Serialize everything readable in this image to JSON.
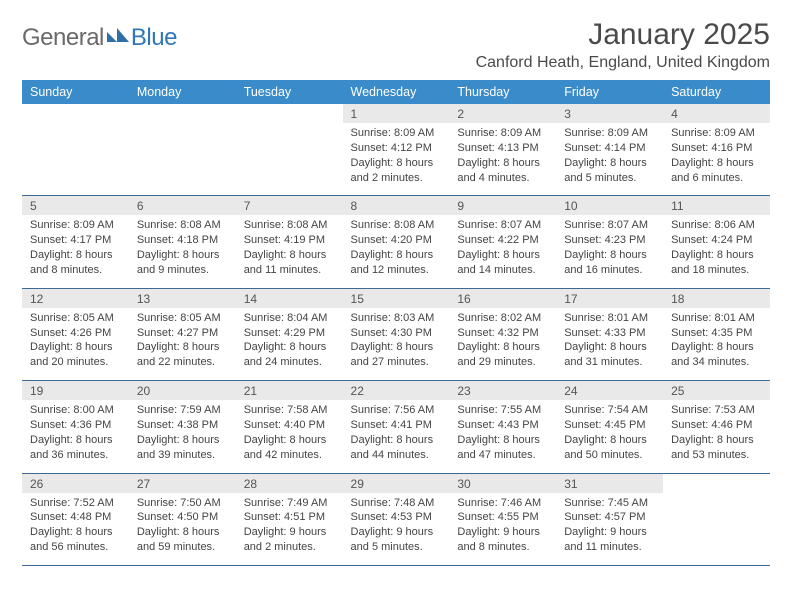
{
  "logo": {
    "word1": "General",
    "word2": "Blue"
  },
  "title": "January 2025",
  "location": "Canford Heath, England, United Kingdom",
  "colors": {
    "header_bg": "#3a8bc9",
    "header_text": "#ffffff",
    "daynum_bg": "#e9e9e9",
    "rule": "#3a6a95",
    "logo_gray": "#6a6a6a",
    "logo_blue": "#3077b7"
  },
  "day_headers": [
    "Sunday",
    "Monday",
    "Tuesday",
    "Wednesday",
    "Thursday",
    "Friday",
    "Saturday"
  ],
  "weeks": [
    [
      null,
      null,
      null,
      {
        "n": "1",
        "sr": "8:09 AM",
        "ss": "4:12 PM",
        "dl": "8 hours and 2 minutes."
      },
      {
        "n": "2",
        "sr": "8:09 AM",
        "ss": "4:13 PM",
        "dl": "8 hours and 4 minutes."
      },
      {
        "n": "3",
        "sr": "8:09 AM",
        "ss": "4:14 PM",
        "dl": "8 hours and 5 minutes."
      },
      {
        "n": "4",
        "sr": "8:09 AM",
        "ss": "4:16 PM",
        "dl": "8 hours and 6 minutes."
      }
    ],
    [
      {
        "n": "5",
        "sr": "8:09 AM",
        "ss": "4:17 PM",
        "dl": "8 hours and 8 minutes."
      },
      {
        "n": "6",
        "sr": "8:08 AM",
        "ss": "4:18 PM",
        "dl": "8 hours and 9 minutes."
      },
      {
        "n": "7",
        "sr": "8:08 AM",
        "ss": "4:19 PM",
        "dl": "8 hours and 11 minutes."
      },
      {
        "n": "8",
        "sr": "8:08 AM",
        "ss": "4:20 PM",
        "dl": "8 hours and 12 minutes."
      },
      {
        "n": "9",
        "sr": "8:07 AM",
        "ss": "4:22 PM",
        "dl": "8 hours and 14 minutes."
      },
      {
        "n": "10",
        "sr": "8:07 AM",
        "ss": "4:23 PM",
        "dl": "8 hours and 16 minutes."
      },
      {
        "n": "11",
        "sr": "8:06 AM",
        "ss": "4:24 PM",
        "dl": "8 hours and 18 minutes."
      }
    ],
    [
      {
        "n": "12",
        "sr": "8:05 AM",
        "ss": "4:26 PM",
        "dl": "8 hours and 20 minutes."
      },
      {
        "n": "13",
        "sr": "8:05 AM",
        "ss": "4:27 PM",
        "dl": "8 hours and 22 minutes."
      },
      {
        "n": "14",
        "sr": "8:04 AM",
        "ss": "4:29 PM",
        "dl": "8 hours and 24 minutes."
      },
      {
        "n": "15",
        "sr": "8:03 AM",
        "ss": "4:30 PM",
        "dl": "8 hours and 27 minutes."
      },
      {
        "n": "16",
        "sr": "8:02 AM",
        "ss": "4:32 PM",
        "dl": "8 hours and 29 minutes."
      },
      {
        "n": "17",
        "sr": "8:01 AM",
        "ss": "4:33 PM",
        "dl": "8 hours and 31 minutes."
      },
      {
        "n": "18",
        "sr": "8:01 AM",
        "ss": "4:35 PM",
        "dl": "8 hours and 34 minutes."
      }
    ],
    [
      {
        "n": "19",
        "sr": "8:00 AM",
        "ss": "4:36 PM",
        "dl": "8 hours and 36 minutes."
      },
      {
        "n": "20",
        "sr": "7:59 AM",
        "ss": "4:38 PM",
        "dl": "8 hours and 39 minutes."
      },
      {
        "n": "21",
        "sr": "7:58 AM",
        "ss": "4:40 PM",
        "dl": "8 hours and 42 minutes."
      },
      {
        "n": "22",
        "sr": "7:56 AM",
        "ss": "4:41 PM",
        "dl": "8 hours and 44 minutes."
      },
      {
        "n": "23",
        "sr": "7:55 AM",
        "ss": "4:43 PM",
        "dl": "8 hours and 47 minutes."
      },
      {
        "n": "24",
        "sr": "7:54 AM",
        "ss": "4:45 PM",
        "dl": "8 hours and 50 minutes."
      },
      {
        "n": "25",
        "sr": "7:53 AM",
        "ss": "4:46 PM",
        "dl": "8 hours and 53 minutes."
      }
    ],
    [
      {
        "n": "26",
        "sr": "7:52 AM",
        "ss": "4:48 PM",
        "dl": "8 hours and 56 minutes."
      },
      {
        "n": "27",
        "sr": "7:50 AM",
        "ss": "4:50 PM",
        "dl": "8 hours and 59 minutes."
      },
      {
        "n": "28",
        "sr": "7:49 AM",
        "ss": "4:51 PM",
        "dl": "9 hours and 2 minutes."
      },
      {
        "n": "29",
        "sr": "7:48 AM",
        "ss": "4:53 PM",
        "dl": "9 hours and 5 minutes."
      },
      {
        "n": "30",
        "sr": "7:46 AM",
        "ss": "4:55 PM",
        "dl": "9 hours and 8 minutes."
      },
      {
        "n": "31",
        "sr": "7:45 AM",
        "ss": "4:57 PM",
        "dl": "9 hours and 11 minutes."
      },
      null
    ]
  ],
  "labels": {
    "sunrise": "Sunrise: ",
    "sunset": "Sunset: ",
    "daylight": "Daylight: "
  }
}
